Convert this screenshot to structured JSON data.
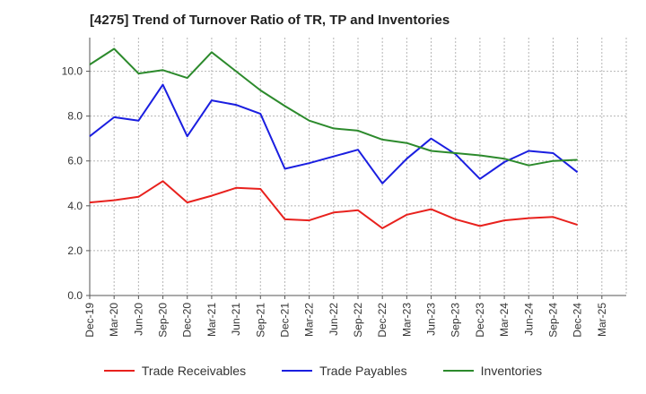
{
  "chart_data": {
    "type": "line",
    "title": "[4275]  Trend of Turnover Ratio of TR, TP and Inventories",
    "xlabel": "",
    "ylabel": "",
    "ylim": [
      0,
      11.5
    ],
    "yticks": [
      "0.0",
      "2.0",
      "4.0",
      "6.0",
      "8.0",
      "10.0"
    ],
    "x_tick_labels": [
      "Dec-19",
      "Mar-20",
      "Jun-20",
      "Sep-20",
      "Dec-20",
      "Mar-21",
      "Jun-21",
      "Sep-21",
      "Dec-21",
      "Mar-22",
      "Jun-22",
      "Sep-22",
      "Dec-22",
      "Mar-23",
      "Jun-23",
      "Sep-23",
      "Dec-23",
      "Mar-24",
      "Jun-24",
      "Sep-24",
      "Dec-24",
      "Mar-25"
    ],
    "categories": [
      "Dec-19",
      "Mar-20",
      "Jun-20",
      "Sep-20",
      "Dec-20",
      "Mar-21",
      "Jun-21",
      "Sep-21",
      "Dec-21",
      "Mar-22",
      "Jun-22",
      "Sep-22",
      "Dec-22",
      "Mar-23",
      "Jun-23",
      "Sep-23",
      "Dec-23",
      "Mar-24",
      "Jun-24",
      "Sep-24",
      "Dec-24"
    ],
    "grid": true,
    "legend_position": "bottom",
    "series": [
      {
        "name": "Trade Receivables",
        "color": "#e8211d",
        "values": [
          4.15,
          4.25,
          4.4,
          5.1,
          4.15,
          4.45,
          4.8,
          4.75,
          3.4,
          3.35,
          3.7,
          3.8,
          3.0,
          3.6,
          3.85,
          3.4,
          3.1,
          3.35,
          3.45,
          3.5,
          3.15
        ]
      },
      {
        "name": "Trade Payables",
        "color": "#1a1ee0",
        "values": [
          7.1,
          7.95,
          7.8,
          9.4,
          7.1,
          8.7,
          8.5,
          8.1,
          5.65,
          5.9,
          6.2,
          6.5,
          5.0,
          6.1,
          7.0,
          6.3,
          5.2,
          5.95,
          6.45,
          6.35,
          5.5
        ]
      },
      {
        "name": "Inventories",
        "color": "#2c8a2c",
        "values": [
          10.3,
          11.0,
          9.9,
          10.05,
          9.7,
          10.85,
          10.0,
          9.15,
          8.45,
          7.8,
          7.45,
          7.35,
          6.95,
          6.8,
          6.45,
          6.35,
          6.25,
          6.1,
          5.8,
          6.0,
          6.05
        ]
      }
    ]
  }
}
